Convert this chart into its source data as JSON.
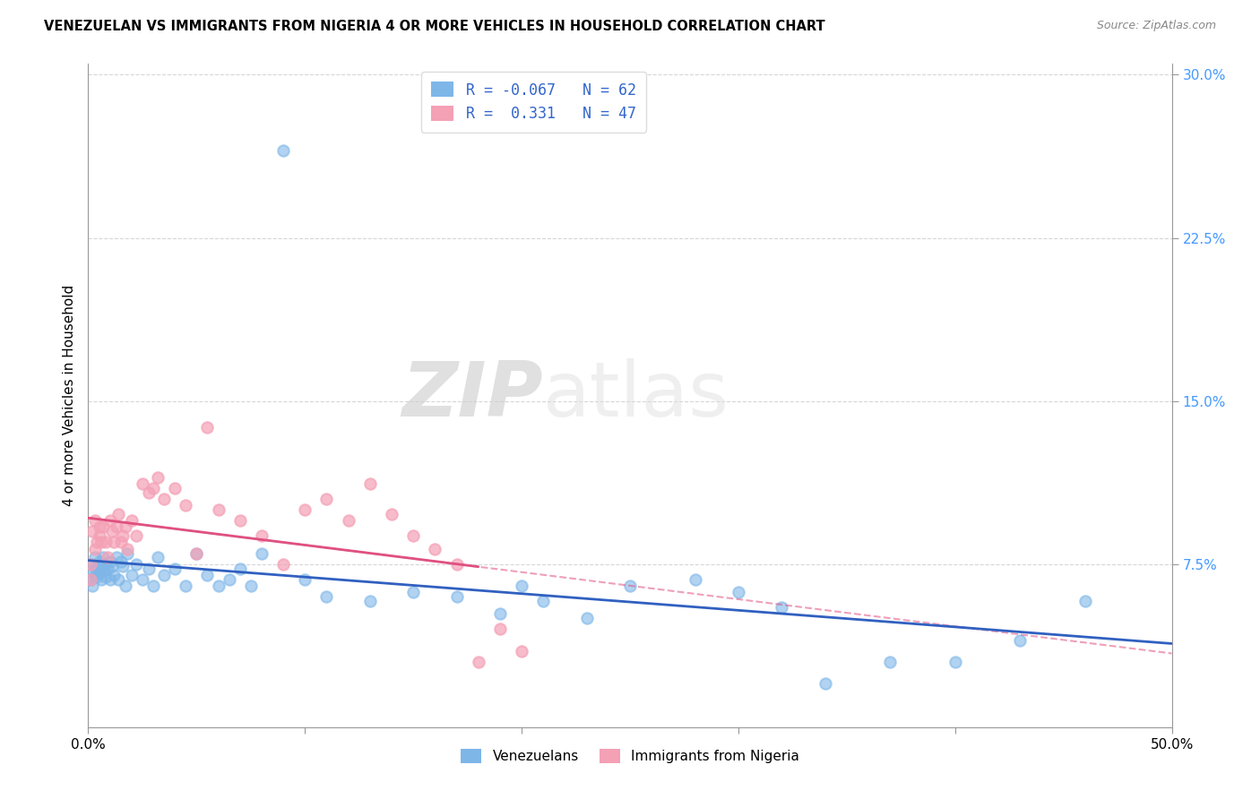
{
  "title": "VENEZUELAN VS IMMIGRANTS FROM NIGERIA 4 OR MORE VEHICLES IN HOUSEHOLD CORRELATION CHART",
  "source": "Source: ZipAtlas.com",
  "ylabel": "4 or more Vehicles in Household",
  "xmin": 0.0,
  "xmax": 0.5,
  "ymin": 0.0,
  "ymax": 0.3,
  "xticks": [
    0.0,
    0.1,
    0.2,
    0.3,
    0.4,
    0.5
  ],
  "xticklabels": [
    "0.0%",
    "",
    "",
    "",
    "",
    "50.0%"
  ],
  "yticks": [
    0.075,
    0.15,
    0.225,
    0.3
  ],
  "yticklabels": [
    "7.5%",
    "15.0%",
    "22.5%",
    "30.0%"
  ],
  "blue_R": -0.067,
  "blue_N": 62,
  "pink_R": 0.331,
  "pink_N": 47,
  "blue_color": "#7EB6E8",
  "pink_color": "#F4A0B5",
  "blue_line_color": "#3060C0",
  "pink_line_color": "#E05080",
  "watermark_zip": "ZIP",
  "watermark_atlas": "atlas",
  "legend_label_blue": "Venezuelans",
  "legend_label_pink": "Immigrants from Nigeria",
  "blue_x": [
    0.001,
    0.001,
    0.002,
    0.002,
    0.003,
    0.003,
    0.004,
    0.004,
    0.005,
    0.005,
    0.006,
    0.006,
    0.007,
    0.007,
    0.008,
    0.008,
    0.009,
    0.01,
    0.01,
    0.011,
    0.012,
    0.013,
    0.014,
    0.015,
    0.016,
    0.017,
    0.018,
    0.02,
    0.022,
    0.025,
    0.028,
    0.03,
    0.032,
    0.035,
    0.04,
    0.045,
    0.05,
    0.055,
    0.06,
    0.065,
    0.07,
    0.075,
    0.08,
    0.09,
    0.1,
    0.11,
    0.13,
    0.15,
    0.17,
    0.19,
    0.2,
    0.21,
    0.23,
    0.25,
    0.28,
    0.3,
    0.32,
    0.34,
    0.37,
    0.4,
    0.43,
    0.46
  ],
  "blue_y": [
    0.075,
    0.068,
    0.072,
    0.065,
    0.078,
    0.07,
    0.073,
    0.069,
    0.076,
    0.071,
    0.074,
    0.068,
    0.072,
    0.078,
    0.069,
    0.075,
    0.073,
    0.068,
    0.076,
    0.074,
    0.07,
    0.078,
    0.068,
    0.076,
    0.074,
    0.065,
    0.08,
    0.07,
    0.075,
    0.068,
    0.073,
    0.065,
    0.078,
    0.07,
    0.073,
    0.065,
    0.08,
    0.07,
    0.065,
    0.068,
    0.073,
    0.065,
    0.08,
    0.265,
    0.068,
    0.06,
    0.058,
    0.062,
    0.06,
    0.052,
    0.065,
    0.058,
    0.05,
    0.065,
    0.068,
    0.062,
    0.055,
    0.02,
    0.03,
    0.03,
    0.04,
    0.058
  ],
  "pink_x": [
    0.001,
    0.001,
    0.002,
    0.003,
    0.003,
    0.004,
    0.005,
    0.005,
    0.006,
    0.007,
    0.008,
    0.009,
    0.01,
    0.011,
    0.012,
    0.013,
    0.014,
    0.015,
    0.016,
    0.017,
    0.018,
    0.02,
    0.022,
    0.025,
    0.028,
    0.03,
    0.032,
    0.035,
    0.04,
    0.045,
    0.05,
    0.055,
    0.06,
    0.07,
    0.08,
    0.09,
    0.1,
    0.11,
    0.12,
    0.13,
    0.14,
    0.15,
    0.16,
    0.17,
    0.18,
    0.19,
    0.2
  ],
  "pink_y": [
    0.075,
    0.068,
    0.09,
    0.082,
    0.095,
    0.085,
    0.092,
    0.088,
    0.085,
    0.092,
    0.085,
    0.078,
    0.095,
    0.09,
    0.085,
    0.092,
    0.098,
    0.085,
    0.088,
    0.092,
    0.082,
    0.095,
    0.088,
    0.112,
    0.108,
    0.11,
    0.115,
    0.105,
    0.11,
    0.102,
    0.08,
    0.138,
    0.1,
    0.095,
    0.088,
    0.075,
    0.1,
    0.105,
    0.095,
    0.112,
    0.098,
    0.088,
    0.082,
    0.075,
    0.03,
    0.045,
    0.035
  ]
}
